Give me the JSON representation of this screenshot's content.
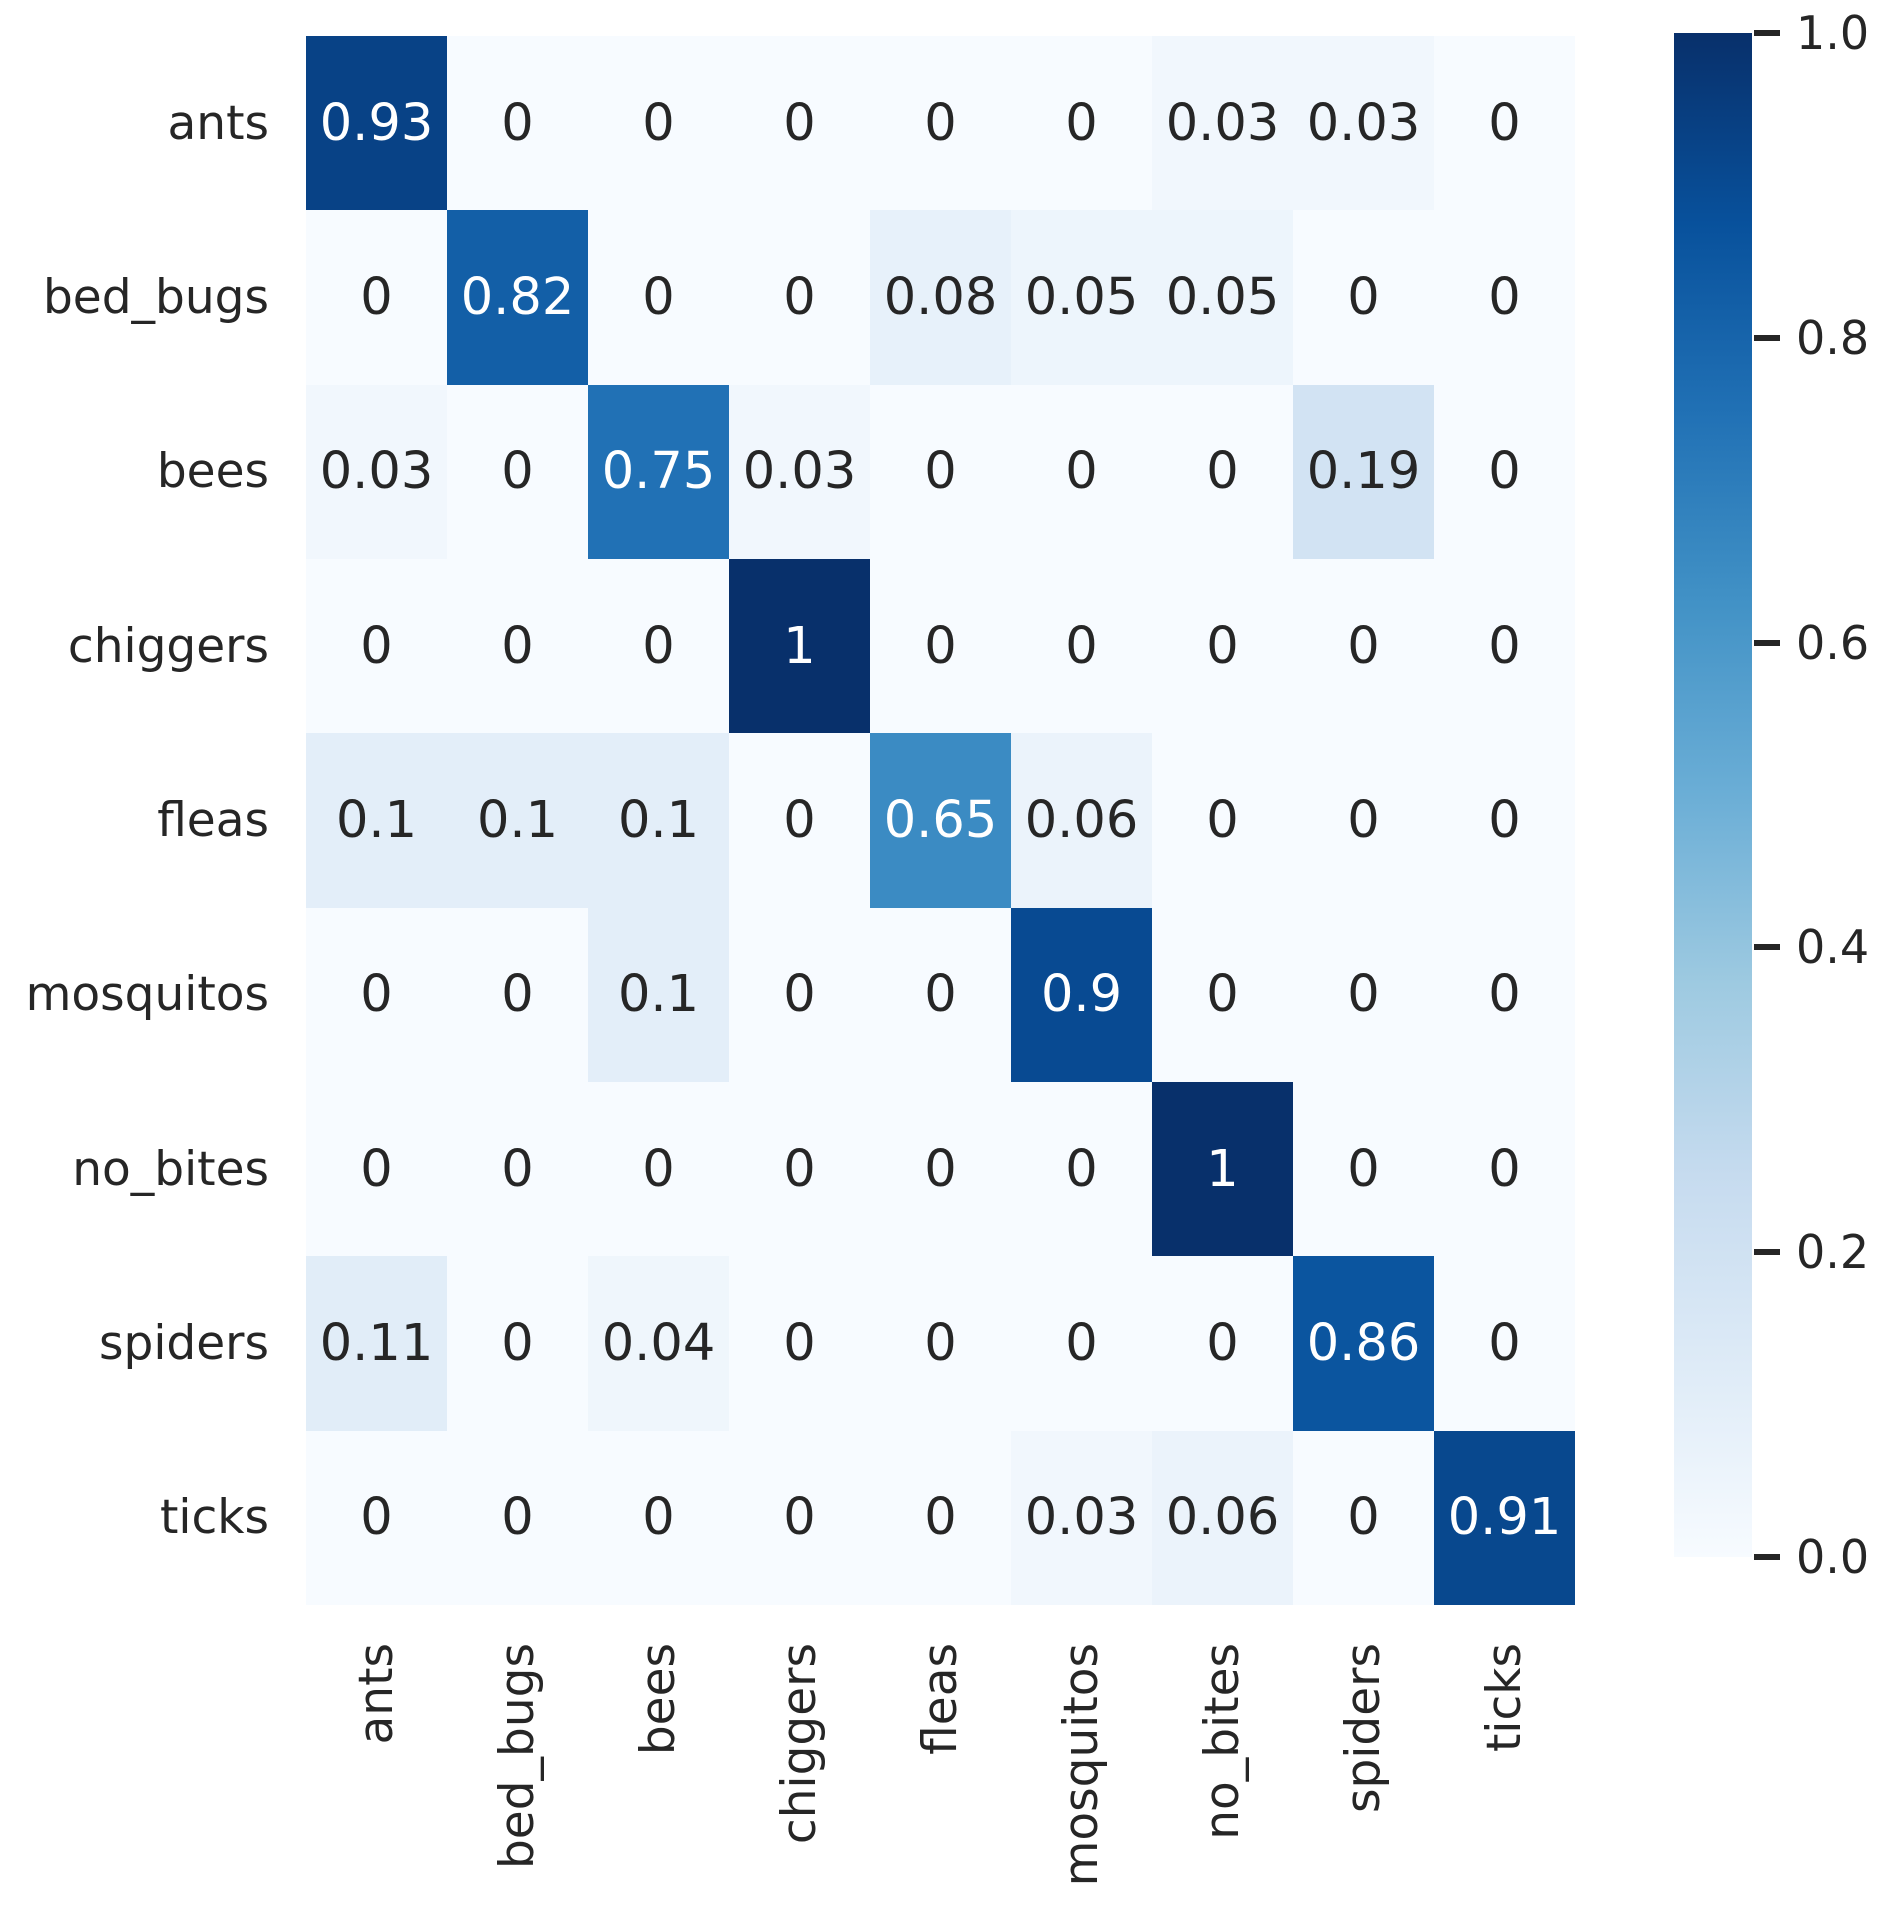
{
  "chart_data": {
    "type": "heatmap",
    "title": "",
    "xlabel": "",
    "ylabel": "",
    "x_categories": [
      "ants",
      "bed_bugs",
      "bees",
      "chiggers",
      "fleas",
      "mosquitos",
      "no_bites",
      "spiders",
      "ticks"
    ],
    "y_categories": [
      "ants",
      "bed_bugs",
      "bees",
      "chiggers",
      "fleas",
      "mosquitos",
      "no_bites",
      "spiders",
      "ticks"
    ],
    "matrix": [
      [
        0.93,
        0,
        0,
        0,
        0,
        0,
        0.03,
        0.03,
        0
      ],
      [
        0,
        0.82,
        0,
        0,
        0.08,
        0.05,
        0.05,
        0,
        0
      ],
      [
        0.03,
        0,
        0.75,
        0.03,
        0,
        0,
        0,
        0.19,
        0
      ],
      [
        0,
        0,
        0,
        1,
        0,
        0,
        0,
        0,
        0
      ],
      [
        0.1,
        0.1,
        0.1,
        0,
        0.65,
        0.06,
        0,
        0,
        0
      ],
      [
        0,
        0,
        0.1,
        0,
        0,
        0.9,
        0,
        0,
        0
      ],
      [
        0,
        0,
        0,
        0,
        0,
        0,
        1,
        0,
        0
      ],
      [
        0.11,
        0,
        0.04,
        0,
        0,
        0,
        0,
        0.86,
        0
      ],
      [
        0,
        0,
        0,
        0,
        0,
        0.03,
        0.06,
        0,
        0.91
      ]
    ],
    "vmin": 0.0,
    "vmax": 1.0,
    "colormap": "Blues",
    "colormap_stops": [
      "#f7fbff",
      "#deebf7",
      "#c6dbef",
      "#9ecae1",
      "#6baed6",
      "#4292c6",
      "#2171b5",
      "#08519c",
      "#08306b"
    ],
    "annotation_color_dark_cells": "#ffffff",
    "annotation_color_light_cells": "#262626",
    "axis_label_color": "#262626",
    "grid": false,
    "legend_position": "colorbar-right",
    "colorbar": {
      "tick_labels": [
        "1.0",
        "0.8",
        "0.6",
        "0.4",
        "0.2",
        "0.0"
      ],
      "tick_values": [
        1.0,
        0.8,
        0.6,
        0.4,
        0.2,
        0.0
      ]
    }
  }
}
